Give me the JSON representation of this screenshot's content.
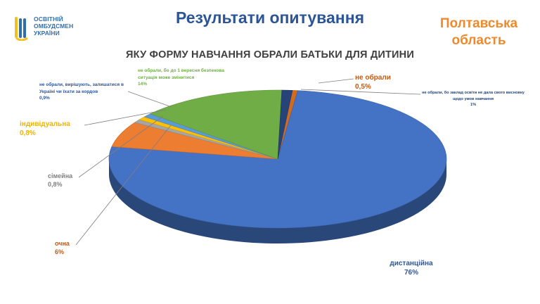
{
  "logo": {
    "text": "ОСВІТНІЙ\nОМБУДСМЕН\nУКРАЇНИ",
    "icon": "ombudsman-logo-icon"
  },
  "header": {
    "title": "Результати опитування",
    "region": "Полтавська\nобласть"
  },
  "chart_data": {
    "type": "pie",
    "title": "ЯКУ ФОРМУ НАВЧАННЯ ОБРАЛИ БАТЬКИ ДЛЯ ДИТИНИ",
    "three_d": true,
    "slices": [
      {
        "label": "не обрали",
        "value_label": "0,5%",
        "value": 0.5,
        "color": "#d46a1e"
      },
      {
        "label": "дистанційна",
        "value_label": "76%",
        "value": 76,
        "color": "#4472c4"
      },
      {
        "label": "очна",
        "value_label": "6%",
        "value": 6,
        "color": "#ed7d31"
      },
      {
        "label": "сімейна",
        "value_label": "0,8%",
        "value": 0.8,
        "color": "#a5a5a5"
      },
      {
        "label": "індивідуальна",
        "value_label": "0,8%",
        "value": 0.8,
        "color": "#ffc000"
      },
      {
        "label": "не обрали, вирішують, залишатися в Україні чи їхати за кордов",
        "value_label": "0,9%",
        "value": 0.9,
        "color": "#5b9bd5"
      },
      {
        "label": "не обрали, бо до 1 вересня безпекова ситуація може змінитися",
        "value_label": "14%",
        "value": 14,
        "color": "#70ad47"
      },
      {
        "label": "не обрали, бо заклад освіти не дала свого висновку щодо умов навчання",
        "value_label": "1%",
        "value": 1,
        "color": "#264478"
      }
    ]
  }
}
